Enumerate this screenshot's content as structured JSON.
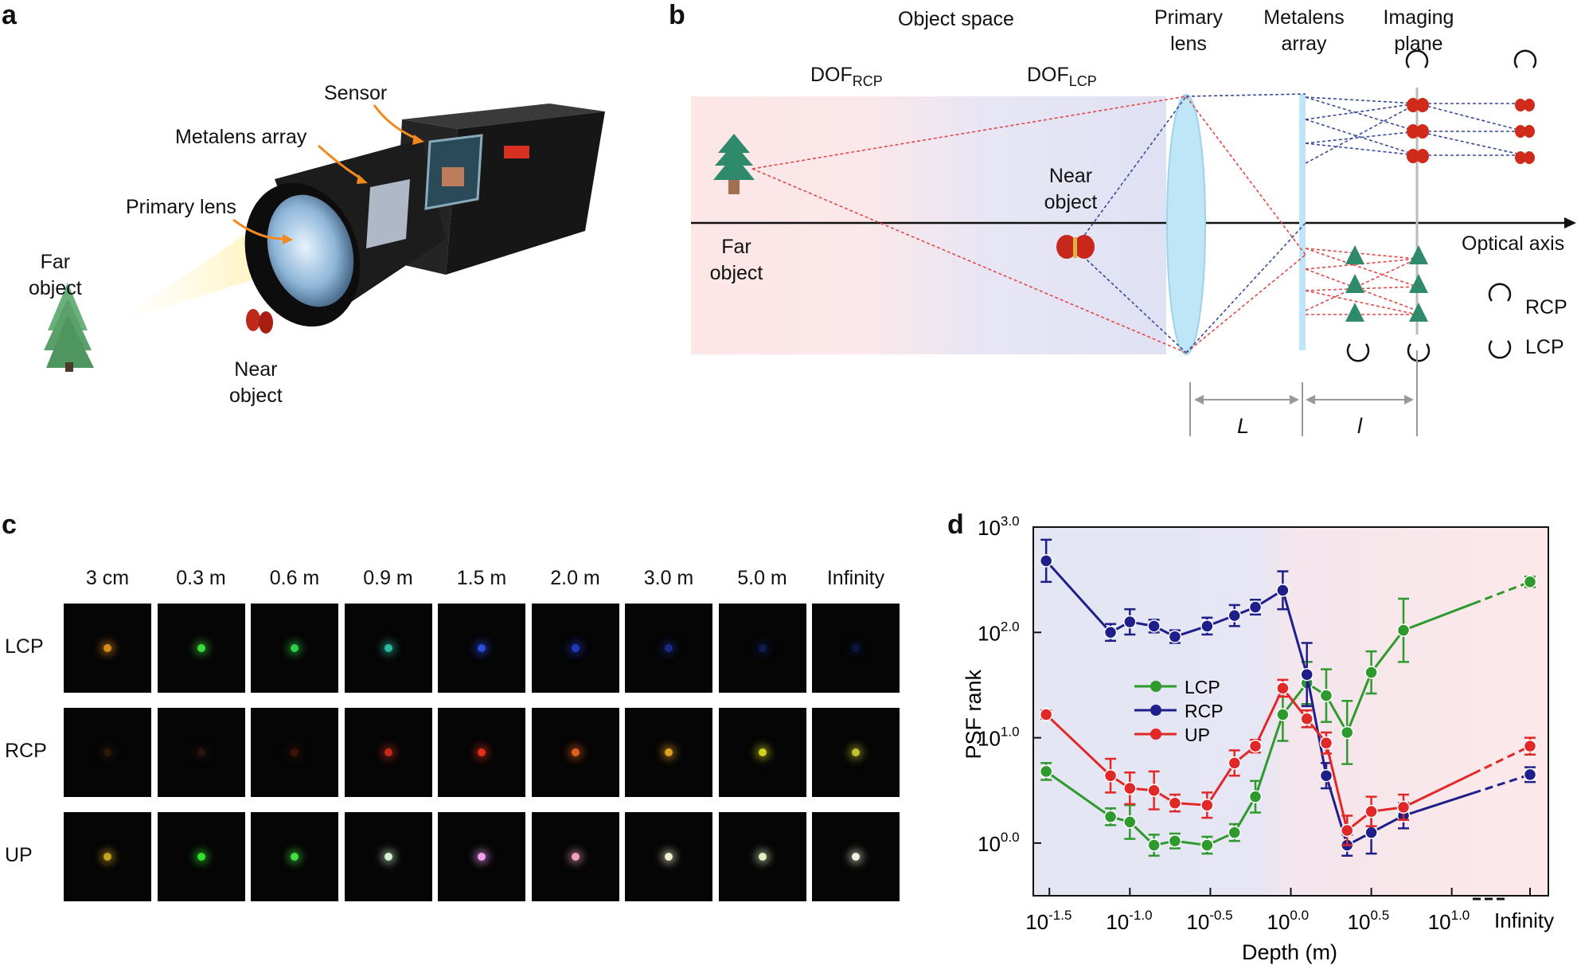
{
  "panels": {
    "a": "a",
    "b": "b",
    "c": "c",
    "d": "d"
  },
  "panel_a": {
    "far_object": "Far\nobject",
    "near_object": "Near\nobject",
    "primary_lens": "Primary lens",
    "metalens_array": "Metalens array",
    "sensor": "Sensor"
  },
  "panel_b": {
    "object_space": "Object space",
    "dof_rcp_main": "DOF",
    "dof_rcp_sub": "RCP",
    "dof_lcp_main": "DOF",
    "dof_lcp_sub": "LCP",
    "primary_lens_1": "Primary",
    "primary_lens_2": "lens",
    "metalens_1": "Metalens",
    "metalens_2": "array",
    "imaging_1": "Imaging",
    "imaging_2": "plane",
    "near_1": "Near",
    "near_2": "object",
    "far_1": "Far",
    "far_2": "object",
    "optical_axis": "Optical axis",
    "rcp": "RCP",
    "lcp": "LCP",
    "L": "L",
    "l": "l"
  },
  "panel_c": {
    "columns": [
      "3 cm",
      "0.3 m",
      "0.6 m",
      "0.9 m",
      "1.5 m",
      "2.0 m",
      "3.0 m",
      "5.0 m",
      "Infinity"
    ],
    "rows": [
      "LCP",
      "RCP",
      "UP"
    ],
    "spot_colors": [
      [
        "#d98a1a",
        "#3ddc3d",
        "#2fcf4a",
        "#2bb7a0",
        "#2a4be0",
        "#2038c0",
        "#1a2a80",
        "#101a50",
        "#0c1440"
      ],
      [
        "#2a1a0a",
        "#2a1210",
        "#3a1408",
        "#c02a1a",
        "#e0301a",
        "#e0601a",
        "#e0a020",
        "#d0d020",
        "#c0c030"
      ],
      [
        "#c8a020",
        "#30e030",
        "#40e040",
        "#d0f0d0",
        "#f0a0f0",
        "#f0a0c0",
        "#f0f0d0",
        "#e0f0c0",
        "#f0f0e0"
      ]
    ]
  },
  "chart_data": {
    "type": "line",
    "xlabel": "Depth (m)",
    "ylabel": "PSF rank",
    "y_scale": "log",
    "ylim_exp": [
      -0.5,
      3.0
    ],
    "xlim_exp": [
      -1.6,
      1.6
    ],
    "x_tick_labels": [
      {
        "base": "10",
        "exp": "-1.5"
      },
      {
        "base": "10",
        "exp": "-1.0"
      },
      {
        "base": "10",
        "exp": "-0.5"
      },
      {
        "base": "10",
        "exp": "0.0"
      },
      {
        "base": "10",
        "exp": "0.5"
      },
      {
        "base": "10",
        "exp": "1.0"
      },
      {
        "base": "",
        "exp": "",
        "text": "Infinity"
      }
    ],
    "y_tick_labels": [
      {
        "base": "10",
        "exp": "0.0"
      },
      {
        "base": "10",
        "exp": "1.0"
      },
      {
        "base": "10",
        "exp": "2.0"
      },
      {
        "base": "10",
        "exp": "3.0"
      }
    ],
    "legend_position": "center-left",
    "series": [
      {
        "name": "LCP",
        "color": "#2e9a2e",
        "x_exp": [
          -1.52,
          -1.12,
          -1.0,
          -0.85,
          -0.72,
          -0.52,
          -0.35,
          -0.22,
          -0.05,
          0.1,
          0.22,
          0.35,
          0.5,
          0.7
        ],
        "y_exp": [
          0.68,
          0.25,
          0.2,
          -0.02,
          0.02,
          -0.02,
          0.1,
          0.44,
          1.22,
          1.52,
          1.4,
          1.05,
          1.62,
          2.02
        ],
        "err": [
          0.08,
          0.08,
          0.16,
          0.1,
          0.07,
          0.08,
          0.08,
          0.15,
          0.25,
          0.2,
          0.25,
          0.3,
          0.2,
          0.3
        ],
        "inf_y_exp": 2.48,
        "inf_err": 0.05
      },
      {
        "name": "RCP",
        "color": "#1f1f8a",
        "x_exp": [
          -1.52,
          -1.12,
          -1.0,
          -0.85,
          -0.72,
          -0.52,
          -0.35,
          -0.22,
          -0.05,
          0.1,
          0.22,
          0.35,
          0.5,
          0.7
        ],
        "y_exp": [
          2.68,
          2.0,
          2.1,
          2.06,
          1.96,
          2.06,
          2.16,
          2.24,
          2.4,
          1.6,
          0.64,
          -0.02,
          0.1,
          0.26
        ],
        "err": [
          0.2,
          0.08,
          0.12,
          0.06,
          0.06,
          0.08,
          0.1,
          0.07,
          0.18,
          0.3,
          0.12,
          0.1,
          0.2,
          0.12
        ],
        "inf_y_exp": 0.65,
        "inf_err": 0.07
      },
      {
        "name": "UP",
        "color": "#e02828",
        "x_exp": [
          -1.52,
          -1.12,
          -1.0,
          -0.85,
          -0.72,
          -0.52,
          -0.35,
          -0.22,
          -0.05,
          0.1,
          0.22,
          0.35,
          0.5,
          0.7
        ],
        "y_exp": [
          1.22,
          0.64,
          0.52,
          0.5,
          0.38,
          0.36,
          0.76,
          0.92,
          1.47,
          1.18,
          0.95,
          0.12,
          0.3,
          0.34
        ],
        "err": [
          0.04,
          0.16,
          0.15,
          0.18,
          0.08,
          0.12,
          0.12,
          0.06,
          0.08,
          0.08,
          0.1,
          0.14,
          0.14,
          0.12
        ],
        "inf_y_exp": 0.92,
        "inf_err": 0.08
      }
    ]
  }
}
